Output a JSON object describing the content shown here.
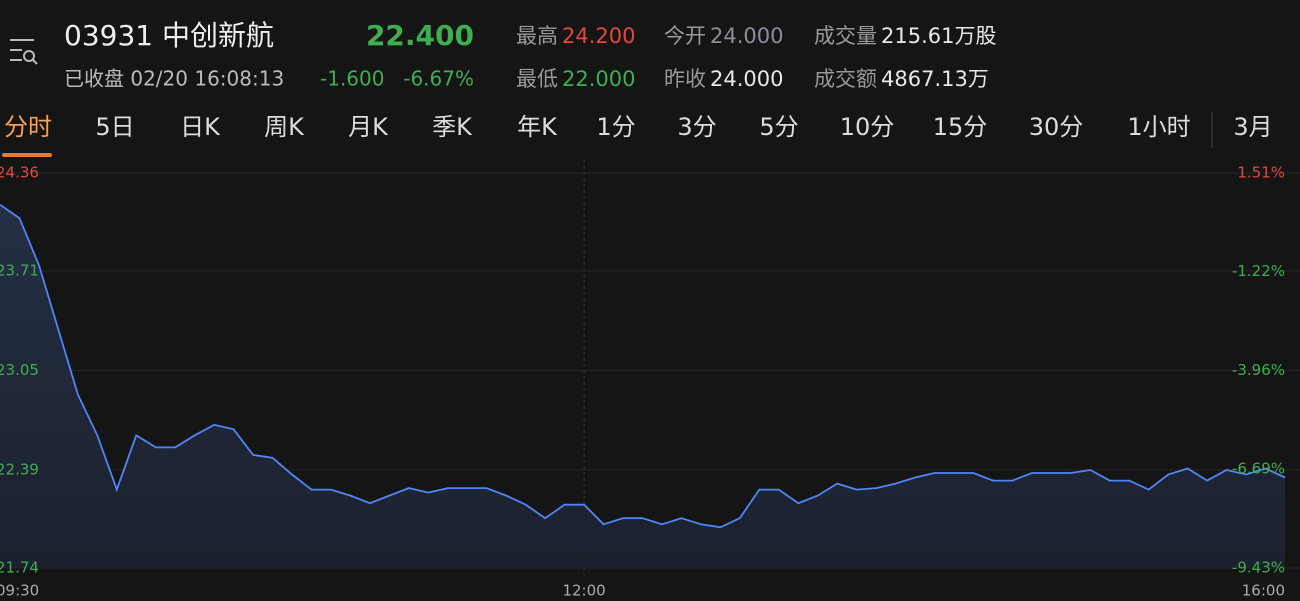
{
  "header": {
    "title": "03931 中创新航",
    "price": "22.400",
    "status": "已收盘 02/20 16:08:13",
    "change": "-1.600",
    "change_pct": "-6.67%",
    "stats": [
      {
        "label": "最高",
        "value": "24.200",
        "color": "#e5473f"
      },
      {
        "label": "今开",
        "value": "24.000",
        "color": "#8a8f99"
      },
      {
        "label": "成交量",
        "value": "215.61万股",
        "color": "#e8e8e8"
      },
      {
        "label": "最低",
        "value": "22.000",
        "color": "#3fae4f"
      },
      {
        "label": "昨收",
        "value": "24.000",
        "color": "#e8e8e8"
      },
      {
        "label": "成交额",
        "value": "4867.13万",
        "color": "#e8e8e8"
      }
    ]
  },
  "tabs": [
    "分时",
    "5日",
    "日K",
    "周K",
    "月K",
    "季K",
    "年K",
    "1分",
    "3分",
    "5分",
    "10分",
    "15分",
    "30分",
    "1小时",
    "3月"
  ],
  "chart_data": {
    "type": "line",
    "categories": [
      "09:30",
      null,
      null,
      null,
      null,
      null,
      null,
      null,
      null,
      null,
      null,
      null,
      null,
      null,
      null,
      null,
      null,
      null,
      null,
      null,
      null,
      null,
      null,
      null,
      null,
      null,
      null,
      null,
      null,
      null,
      "12:00",
      null,
      null,
      null,
      null,
      null,
      null,
      null,
      null,
      null,
      null,
      null,
      null,
      null,
      null,
      null,
      null,
      null,
      null,
      null,
      null,
      null,
      null,
      null,
      null,
      null,
      null,
      null,
      null,
      null,
      null,
      null,
      null,
      null,
      null,
      null,
      "16:00"
    ],
    "series": [
      {
        "color": "#4f86f7",
        "values": [
          24.15,
          24.06,
          23.75,
          23.32,
          22.89,
          22.62,
          22.26,
          22.62,
          22.54,
          22.54,
          22.62,
          22.69,
          22.66,
          22.49,
          22.47,
          22.36,
          22.26,
          22.26,
          22.22,
          22.17,
          22.22,
          22.27,
          22.24,
          22.27,
          22.27,
          22.27,
          22.22,
          22.16,
          22.07,
          22.16,
          22.16,
          22.03,
          22.07,
          22.07,
          22.03,
          22.07,
          22.03,
          22.01,
          22.07,
          22.26,
          22.26,
          22.17,
          22.22,
          22.3,
          22.26,
          22.27,
          22.3,
          22.34,
          22.37,
          22.37,
          22.37,
          22.32,
          22.32,
          22.37,
          22.37,
          22.37,
          22.39,
          22.32,
          22.32,
          22.26,
          22.36,
          22.4,
          22.32,
          22.39,
          22.36,
          22.4,
          22.34
        ]
      }
    ],
    "ylim": [
      21.74,
      24.36
    ],
    "yticks": [
      24.36,
      23.71,
      23.05,
      22.39,
      21.74
    ],
    "y2lim": [
      -9.43,
      1.51
    ],
    "y2ticks": [
      {
        "value": 1.51,
        "label": "1.51%"
      },
      {
        "value": -1.22,
        "label": "-1.22%"
      },
      {
        "value": -3.96,
        "label": "-3.96%"
      },
      {
        "value": -6.69,
        "label": "-6.69%"
      },
      {
        "value": -9.43,
        "label": "-9.43%"
      }
    ],
    "up_color": "#e5473f",
    "down_color": "#3fae4f",
    "grid": true
  }
}
